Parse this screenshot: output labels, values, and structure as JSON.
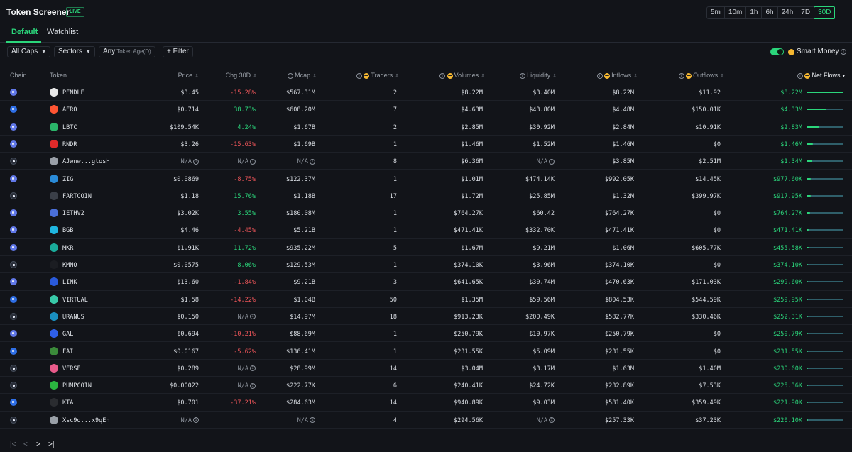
{
  "header": {
    "title": "Token Screener",
    "live_badge": "LIVE",
    "timeframes": [
      "5m",
      "10m",
      "1h",
      "6h",
      "24h",
      "7D",
      "30D"
    ],
    "active_timeframe": "30D"
  },
  "tabs": {
    "default": "Default",
    "watchlist": "Watchlist"
  },
  "filters": {
    "caps": "All Caps",
    "sectors": "Sectors",
    "age_value": "Any",
    "age_label": "Token Age(D)",
    "add_filter": "+ Filter",
    "smart_money": "Smart Money",
    "smart_money_enabled": true
  },
  "columns": {
    "chain": "Chain",
    "token": "Token",
    "price": "Price",
    "chg": "Chg 30D",
    "mcap": "Mcap",
    "traders": "Traders",
    "volumes": "Volumes",
    "liquidity": "Liquidity",
    "inflows": "Inflows",
    "outflows": "Outflows",
    "net_flows": "Net Flows"
  },
  "colors": {
    "accent": "#2bd67b",
    "negative": "#f0565a",
    "background": "#121419"
  },
  "rows": [
    {
      "chain": "ethereum",
      "icon_color": "#e8e8e8",
      "token": "PENDLE",
      "price": "$3.45",
      "chg": "-15.28%",
      "chg_dir": "neg",
      "mcap": "$567.31M",
      "traders": "2",
      "volumes": "$8.22M",
      "liquidity": "$3.40M",
      "inflows": "$8.22M",
      "outflows": "$11.92",
      "net_flows": "$8.22M",
      "net_share": 1.0
    },
    {
      "chain": "base",
      "icon_color": "#ff5533",
      "token": "AERO",
      "price": "$0.714",
      "chg": "38.73%",
      "chg_dir": "pos",
      "mcap": "$608.20M",
      "traders": "7",
      "volumes": "$4.63M",
      "liquidity": "$43.80M",
      "inflows": "$4.48M",
      "outflows": "$150.01K",
      "net_flows": "$4.33M",
      "net_share": 0.53
    },
    {
      "chain": "ethereum",
      "icon_color": "#2bb56a",
      "token": "LBTC",
      "price": "$109.54K",
      "chg": "4.24%",
      "chg_dir": "pos",
      "mcap": "$1.67B",
      "traders": "2",
      "volumes": "$2.85M",
      "liquidity": "$30.92M",
      "inflows": "$2.84M",
      "outflows": "$10.91K",
      "net_flows": "$2.83M",
      "net_share": 0.34
    },
    {
      "chain": "ethereum",
      "icon_color": "#e02a2a",
      "token": "RNDR",
      "price": "$3.26",
      "chg": "-15.63%",
      "chg_dir": "neg",
      "mcap": "$1.69B",
      "traders": "1",
      "volumes": "$1.46M",
      "liquidity": "$1.52M",
      "inflows": "$1.46M",
      "outflows": "$0",
      "net_flows": "$1.46M",
      "net_share": 0.18
    },
    {
      "chain": "solana",
      "icon_color": "#9aa0a8",
      "token": "AJwnw...gtosH",
      "price": "N/A",
      "chg": "N/A",
      "chg_dir": "na",
      "mcap": "N/A",
      "traders": "8",
      "volumes": "$6.36M",
      "liquidity": "N/A",
      "inflows": "$3.85M",
      "outflows": "$2.51M",
      "net_flows": "$1.34M",
      "net_share": 0.16
    },
    {
      "chain": "ethereum",
      "icon_color": "#2a8bd8",
      "token": "ZIG",
      "price": "$0.0869",
      "chg": "-8.75%",
      "chg_dir": "neg",
      "mcap": "$122.37M",
      "traders": "1",
      "volumes": "$1.01M",
      "liquidity": "$474.14K",
      "inflows": "$992.05K",
      "outflows": "$14.45K",
      "net_flows": "$977.60K",
      "net_share": 0.12
    },
    {
      "chain": "solana",
      "icon_color": "#3a3f48",
      "token": "FARTCOIN",
      "price": "$1.18",
      "chg": "15.76%",
      "chg_dir": "pos",
      "mcap": "$1.18B",
      "traders": "17",
      "volumes": "$1.72M",
      "liquidity": "$25.85M",
      "inflows": "$1.32M",
      "outflows": "$399.97K",
      "net_flows": "$917.95K",
      "net_share": 0.11
    },
    {
      "chain": "ethereum",
      "icon_color": "#4a6fd8",
      "token": "IETHV2",
      "price": "$3.02K",
      "chg": "3.55%",
      "chg_dir": "pos",
      "mcap": "$180.08M",
      "traders": "1",
      "volumes": "$764.27K",
      "liquidity": "$60.42",
      "inflows": "$764.27K",
      "outflows": "$0",
      "net_flows": "$764.27K",
      "net_share": 0.09
    },
    {
      "chain": "ethereum",
      "icon_color": "#1fb6e0",
      "token": "BGB",
      "price": "$4.46",
      "chg": "-4.45%",
      "chg_dir": "neg",
      "mcap": "$5.21B",
      "traders": "1",
      "volumes": "$471.41K",
      "liquidity": "$332.70K",
      "inflows": "$471.41K",
      "outflows": "$0",
      "net_flows": "$471.41K",
      "net_share": 0.06
    },
    {
      "chain": "ethereum",
      "icon_color": "#1aab9b",
      "token": "MKR",
      "price": "$1.91K",
      "chg": "11.72%",
      "chg_dir": "pos",
      "mcap": "$935.22M",
      "traders": "5",
      "volumes": "$1.67M",
      "liquidity": "$9.21M",
      "inflows": "$1.06M",
      "outflows": "$605.77K",
      "net_flows": "$455.58K",
      "net_share": 0.055
    },
    {
      "chain": "solana",
      "icon_color": "#1b1d22",
      "token": "KMNO",
      "price": "$0.0575",
      "chg": "8.06%",
      "chg_dir": "pos",
      "mcap": "$129.53M",
      "traders": "1",
      "volumes": "$374.10K",
      "liquidity": "$3.96M",
      "inflows": "$374.10K",
      "outflows": "$0",
      "net_flows": "$374.10K",
      "net_share": 0.045
    },
    {
      "chain": "ethereum",
      "icon_color": "#2a5ada",
      "token": "LINK",
      "price": "$13.60",
      "chg": "-1.84%",
      "chg_dir": "neg",
      "mcap": "$9.21B",
      "traders": "3",
      "volumes": "$641.65K",
      "liquidity": "$30.74M",
      "inflows": "$470.63K",
      "outflows": "$171.03K",
      "net_flows": "$299.60K",
      "net_share": 0.036
    },
    {
      "chain": "base",
      "icon_color": "#38c9a8",
      "token": "VIRTUAL",
      "price": "$1.58",
      "chg": "-14.22%",
      "chg_dir": "neg",
      "mcap": "$1.04B",
      "traders": "50",
      "volumes": "$1.35M",
      "liquidity": "$59.56M",
      "inflows": "$804.53K",
      "outflows": "$544.59K",
      "net_flows": "$259.95K",
      "net_share": 0.032
    },
    {
      "chain": "solana",
      "icon_color": "#1a8fbf",
      "token": "URANUS",
      "price": "$0.150",
      "chg": "N/A",
      "chg_dir": "na",
      "mcap": "$14.97M",
      "traders": "18",
      "volumes": "$913.23K",
      "liquidity": "$200.49K",
      "inflows": "$582.77K",
      "outflows": "$330.46K",
      "net_flows": "$252.31K",
      "net_share": 0.031
    },
    {
      "chain": "ethereum",
      "icon_color": "#2f5fe8",
      "token": "GAL",
      "price": "$0.694",
      "chg": "-10.21%",
      "chg_dir": "neg",
      "mcap": "$88.69M",
      "traders": "1",
      "volumes": "$250.79K",
      "liquidity": "$10.97K",
      "inflows": "$250.79K",
      "outflows": "$0",
      "net_flows": "$250.79K",
      "net_share": 0.031
    },
    {
      "chain": "base",
      "icon_color": "#3b8a3a",
      "token": "FAI",
      "price": "$0.0167",
      "chg": "-5.62%",
      "chg_dir": "neg",
      "mcap": "$136.41M",
      "traders": "1",
      "volumes": "$231.55K",
      "liquidity": "$5.09M",
      "inflows": "$231.55K",
      "outflows": "$0",
      "net_flows": "$231.55K",
      "net_share": 0.028
    },
    {
      "chain": "solana",
      "icon_color": "#e85a8a",
      "token": "VERSE",
      "price": "$0.289",
      "chg": "N/A",
      "chg_dir": "na",
      "mcap": "$28.99M",
      "traders": "14",
      "volumes": "$3.04M",
      "liquidity": "$3.17M",
      "inflows": "$1.63M",
      "outflows": "$1.40M",
      "net_flows": "$230.60K",
      "net_share": 0.028
    },
    {
      "chain": "solana",
      "icon_color": "#2bb540",
      "token": "PUMPCOIN",
      "price": "$0.00022",
      "chg": "N/A",
      "chg_dir": "na",
      "mcap": "$222.77K",
      "traders": "6",
      "volumes": "$240.41K",
      "liquidity": "$24.72K",
      "inflows": "$232.89K",
      "outflows": "$7.53K",
      "net_flows": "$225.36K",
      "net_share": 0.027
    },
    {
      "chain": "base",
      "icon_color": "#2a2c30",
      "token": "KTA",
      "price": "$0.701",
      "chg": "-37.21%",
      "chg_dir": "neg",
      "mcap": "$284.63M",
      "traders": "14",
      "volumes": "$940.89K",
      "liquidity": "$9.03M",
      "inflows": "$581.40K",
      "outflows": "$359.49K",
      "net_flows": "$221.90K",
      "net_share": 0.027
    },
    {
      "chain": "solana",
      "icon_color": "#9aa0a8",
      "token": "Xsc9q...x9qEh",
      "price": "N/A",
      "chg": "",
      "chg_dir": "none",
      "mcap": "N/A",
      "traders": "4",
      "volumes": "$294.56K",
      "liquidity": "N/A",
      "inflows": "$257.33K",
      "outflows": "$37.23K",
      "net_flows": "$220.10K",
      "net_share": 0.027
    }
  ],
  "pager": {
    "first": "|<",
    "prev": "<",
    "next": ">",
    "last": ">|"
  }
}
